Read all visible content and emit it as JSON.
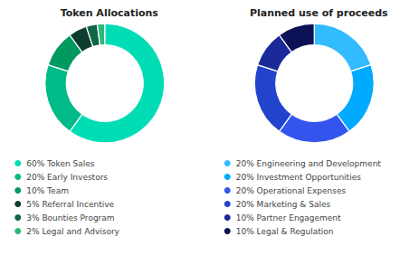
{
  "chart_data": [
    {
      "type": "pie",
      "title": "Token Allocations",
      "categories": [
        "60% Token Sales",
        "20% Early Investors",
        "10% Team",
        "5% Referral Incentive",
        "3% Bounties Program",
        "2% Legal and Advisory"
      ],
      "values": [
        60,
        20,
        10,
        5,
        3,
        2
      ],
      "colors": [
        "#00ddb5",
        "#00bb88",
        "#009960",
        "#0d3d2e",
        "#0f6644",
        "#2db87a"
      ],
      "legend": "bottom"
    },
    {
      "type": "pie",
      "title": "Planned use of proceeds",
      "categories": [
        "20% Engineering and Development",
        "20% Investment Opportunities",
        "20% Operational Expenses",
        "20% Marketing & Sales",
        "10% Partner Engagement",
        "10% Legal & Regulation"
      ],
      "values": [
        20,
        20,
        20,
        20,
        10,
        10
      ],
      "colors": [
        "#33bbff",
        "#00aaff",
        "#3355ee",
        "#2244cc",
        "#1a2a99",
        "#0d1155"
      ],
      "legend": "bottom"
    }
  ]
}
